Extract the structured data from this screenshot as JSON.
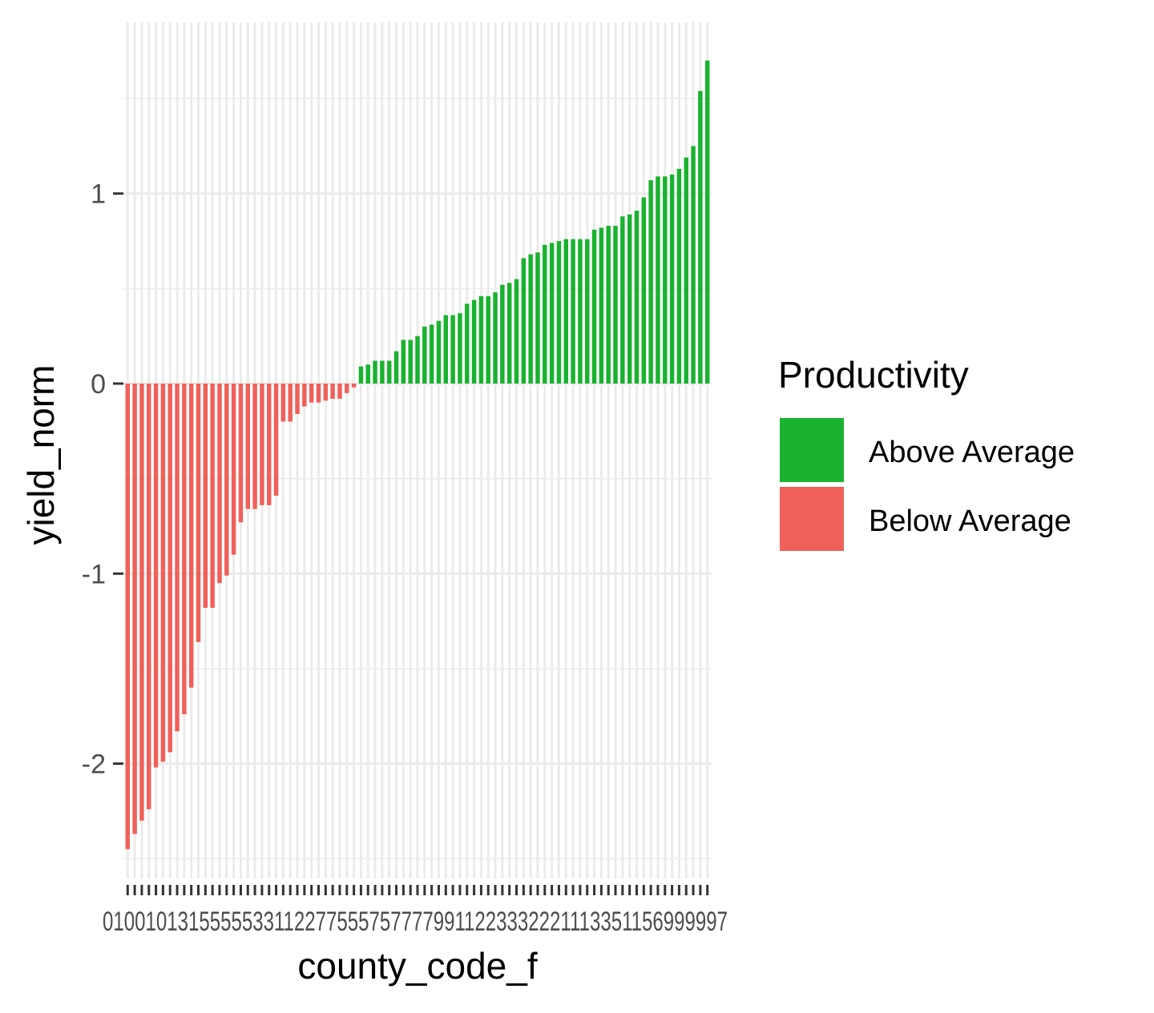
{
  "chart_data": {
    "type": "bar",
    "xlabel": "county_code_f",
    "ylabel": "yield_norm",
    "ylim": [
      -2.65,
      1.92
    ],
    "yticks": [
      -2,
      -1,
      0,
      1
    ],
    "ytick_labels": [
      "-2",
      "-1",
      "0",
      "1"
    ],
    "grid": true,
    "legend": {
      "title": "Productivity",
      "position": "right",
      "entries": [
        {
          "label": "Above Average",
          "color": "#19b22f"
        },
        {
          "label": "Below Average",
          "color": "#f0605a"
        }
      ]
    },
    "x_tick_labels_overlapping": "01001013155555331122775557577779911223332221113351156999997",
    "colors": {
      "above": "#19b22f",
      "below": "#f0605a",
      "panel": "#ffffff",
      "grid": "#ebebeb"
    },
    "values": [
      -2.45,
      -2.37,
      -2.3,
      -2.24,
      -2.02,
      -1.99,
      -1.94,
      -1.83,
      -1.74,
      -1.6,
      -1.36,
      -1.18,
      -1.18,
      -1.05,
      -1.01,
      -0.9,
      -0.73,
      -0.66,
      -0.66,
      -0.64,
      -0.64,
      -0.59,
      -0.2,
      -0.2,
      -0.16,
      -0.12,
      -0.1,
      -0.1,
      -0.09,
      -0.08,
      -0.08,
      -0.05,
      -0.02,
      0.09,
      0.1,
      0.12,
      0.12,
      0.12,
      0.17,
      0.23,
      0.23,
      0.25,
      0.3,
      0.31,
      0.33,
      0.36,
      0.36,
      0.37,
      0.42,
      0.44,
      0.46,
      0.46,
      0.48,
      0.52,
      0.53,
      0.55,
      0.66,
      0.68,
      0.69,
      0.73,
      0.74,
      0.75,
      0.76,
      0.76,
      0.76,
      0.76,
      0.81,
      0.82,
      0.83,
      0.83,
      0.88,
      0.89,
      0.91,
      0.98,
      1.07,
      1.09,
      1.09,
      1.1,
      1.13,
      1.19,
      1.25,
      1.54,
      1.7
    ]
  }
}
